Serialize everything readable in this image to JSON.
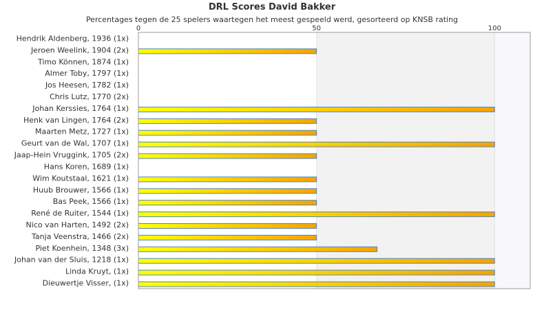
{
  "chart_data": {
    "type": "bar",
    "orientation": "horizontal",
    "title": "DRL Scores David Bakker",
    "subtitle": "Percentages tegen de 25 spelers waartegen het meest gespeeld werd, gesorteerd op KNSB rating",
    "xlabel": "",
    "ylabel": "",
    "xlim": [
      0,
      110
    ],
    "xticks": [
      0,
      50,
      100
    ],
    "grid": true,
    "legend": "none",
    "bar_colors": {
      "start": "#ffff00",
      "end": "#f5a300",
      "edge": "#4f86c6"
    },
    "categories": [
      "Hendrik Aldenberg, 1936 (1x)",
      "Jeroen Weelink, 1904 (2x)",
      "Timo Können, 1874 (1x)",
      "Almer Toby, 1797 (1x)",
      "Jos Heesen, 1782 (1x)",
      "Chris Lutz, 1770 (2x)",
      "Johan Kerssies, 1764 (1x)",
      "Henk van Lingen, 1764 (2x)",
      "Maarten Metz, 1727 (1x)",
      "Geurt van de Wal, 1707 (1x)",
      "Jaap-Hein Vruggink, 1705 (2x)",
      "Hans Koren, 1689 (1x)",
      "Wim Koutstaal, 1621 (1x)",
      "Huub Brouwer, 1566 (1x)",
      "Bas Peek, 1566 (1x)",
      "René de Ruiter, 1544 (1x)",
      "Nico van Harten, 1492 (2x)",
      "Tanja Veenstra, 1466 (2x)",
      "Piet Koenhein, 1348 (3x)",
      "Johan van der Sluis, 1218 (1x)",
      "Linda Kruyt,  (1x)",
      "Dieuwertje Visser,  (1x)"
    ],
    "values": [
      0,
      50,
      0,
      0,
      0,
      0,
      100,
      50,
      50,
      100,
      50,
      0,
      50,
      50,
      50,
      100,
      50,
      50,
      67,
      100,
      100,
      100
    ]
  }
}
